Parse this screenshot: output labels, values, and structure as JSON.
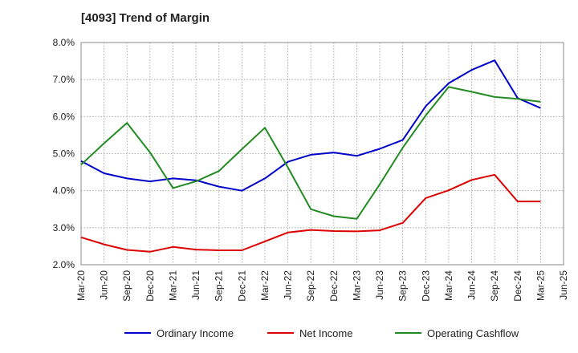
{
  "chart_data": {
    "type": "line",
    "title": "[4093]  Trend of Margin",
    "x": [
      "Mar-20",
      "Jun-20",
      "Sep-20",
      "Dec-20",
      "Mar-21",
      "Jun-21",
      "Sep-21",
      "Dec-21",
      "Mar-22",
      "Jun-22",
      "Sep-22",
      "Dec-22",
      "Mar-23",
      "Jun-23",
      "Sep-23",
      "Dec-23",
      "Mar-24",
      "Jun-24",
      "Sep-24",
      "Dec-24",
      "Mar-25",
      "Jun-25"
    ],
    "y_ticks": [
      "2.0%",
      "3.0%",
      "4.0%",
      "5.0%",
      "6.0%",
      "7.0%",
      "8.0%"
    ],
    "ylim": [
      2.0,
      8.0
    ],
    "grid": true,
    "legend_position": "bottom",
    "series": [
      {
        "name": "Ordinary Income",
        "color": "#0000cc",
        "values": [
          4.8,
          4.47,
          4.33,
          4.25,
          4.33,
          4.28,
          4.11,
          4.0,
          4.33,
          4.78,
          4.97,
          5.03,
          4.94,
          5.13,
          5.37,
          6.28,
          6.9,
          7.26,
          7.52,
          6.5,
          6.23,
          null
        ]
      },
      {
        "name": "Net Income",
        "color": "#dd0000",
        "values": [
          2.74,
          2.55,
          2.4,
          2.35,
          2.48,
          2.41,
          2.39,
          2.39,
          2.63,
          2.87,
          2.94,
          2.91,
          2.9,
          2.93,
          3.13,
          3.8,
          4.01,
          4.29,
          4.43,
          3.71,
          3.71,
          null
        ]
      },
      {
        "name": "Operating Cashflow",
        "color": "#228b22",
        "values": [
          4.7,
          5.28,
          5.83,
          5.03,
          4.07,
          4.25,
          4.53,
          5.12,
          5.7,
          4.63,
          3.5,
          3.31,
          3.24,
          4.17,
          5.16,
          6.03,
          6.8,
          6.67,
          6.53,
          6.48,
          6.4,
          null
        ]
      }
    ]
  }
}
